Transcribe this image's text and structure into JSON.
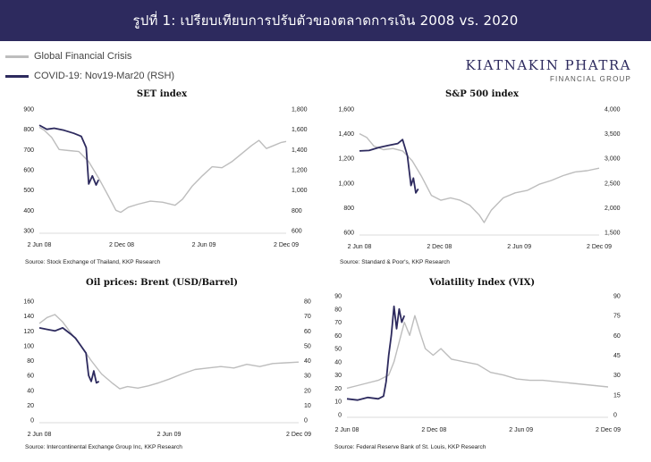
{
  "header": {
    "title": "รูปที่ 1: เปรียบเทียบการปรับตัวของตลาดการเงิน 2008 vs. 2020"
  },
  "legend": {
    "items": [
      {
        "label": "Global Financial Crisis",
        "color": "#bdbdbd"
      },
      {
        "label": "COVID-19: Nov19-Mar20 (RSH)",
        "color": "#2d2a5e"
      }
    ]
  },
  "brand": {
    "name": "KIATNAKIN PHATRA",
    "sub": "FINANCIAL GROUP"
  },
  "chart_data": [
    {
      "type": "line",
      "title": "SET index",
      "source": "Source: Stock Exchange of Thailand, KKP Research",
      "x_ticks": [
        "2 Jun 08",
        "2 Dec 08",
        "2 Jun 09",
        "2 Dec 09"
      ],
      "y_left": {
        "ticks": [
          "300",
          "400",
          "500",
          "600",
          "700",
          "800",
          "900"
        ],
        "range": [
          300,
          900
        ]
      },
      "y_right": {
        "ticks": [
          "600",
          "800",
          "1,000",
          "1,200",
          "1,400",
          "1,600",
          "1,800"
        ],
        "range": [
          600,
          1800
        ]
      },
      "series": [
        {
          "axis": "left",
          "color": "#bdbdbd",
          "values": [
            [
              0,
              810
            ],
            [
              0.02,
              795
            ],
            [
              0.05,
              760
            ],
            [
              0.08,
              700
            ],
            [
              0.12,
              695
            ],
            [
              0.16,
              690
            ],
            [
              0.2,
              640
            ],
            [
              0.24,
              560
            ],
            [
              0.28,
              470
            ],
            [
              0.31,
              400
            ],
            [
              0.33,
              390
            ],
            [
              0.36,
              415
            ],
            [
              0.4,
              430
            ],
            [
              0.45,
              445
            ],
            [
              0.5,
              440
            ],
            [
              0.55,
              425
            ],
            [
              0.58,
              455
            ],
            [
              0.62,
              520
            ],
            [
              0.66,
              570
            ],
            [
              0.7,
              615
            ],
            [
              0.74,
              610
            ],
            [
              0.78,
              640
            ],
            [
              0.82,
              680
            ],
            [
              0.86,
              720
            ],
            [
              0.89,
              745
            ],
            [
              0.92,
              705
            ],
            [
              0.95,
              720
            ],
            [
              0.98,
              735
            ],
            [
              1,
              740
            ]
          ]
        },
        {
          "axis": "right",
          "color": "#2d2a5e",
          "values": [
            [
              0,
              1640
            ],
            [
              0.03,
              1600
            ],
            [
              0.06,
              1610
            ],
            [
              0.1,
              1590
            ],
            [
              0.14,
              1560
            ],
            [
              0.17,
              1530
            ],
            [
              0.19,
              1420
            ],
            [
              0.2,
              1060
            ],
            [
              0.215,
              1140
            ],
            [
              0.23,
              1050
            ],
            [
              0.24,
              1100
            ]
          ]
        }
      ]
    },
    {
      "type": "line",
      "title": "S&P 500 index",
      "source": "Source: Standard & Poor's, KKP Research",
      "x_ticks": [
        "2 Jun 08",
        "2 Dec 08",
        "2 Jun 09",
        "2 Dec 09"
      ],
      "y_left": {
        "ticks": [
          "600",
          "800",
          "1,000",
          "1,200",
          "1,400",
          "1,600"
        ],
        "range": [
          600,
          1600
        ]
      },
      "y_right": {
        "ticks": [
          "1,500",
          "2,000",
          "2,500",
          "3,000",
          "3,500",
          "4,000"
        ],
        "range": [
          1500,
          4000
        ]
      },
      "series": [
        {
          "axis": "left",
          "color": "#bdbdbd",
          "values": [
            [
              0,
              1400
            ],
            [
              0.03,
              1370
            ],
            [
              0.06,
              1300
            ],
            [
              0.1,
              1270
            ],
            [
              0.14,
              1280
            ],
            [
              0.18,
              1260
            ],
            [
              0.22,
              1180
            ],
            [
              0.26,
              1050
            ],
            [
              0.3,
              900
            ],
            [
              0.34,
              860
            ],
            [
              0.38,
              880
            ],
            [
              0.42,
              860
            ],
            [
              0.46,
              820
            ],
            [
              0.5,
              740
            ],
            [
              0.52,
              680
            ],
            [
              0.55,
              780
            ],
            [
              0.6,
              880
            ],
            [
              0.65,
              920
            ],
            [
              0.7,
              940
            ],
            [
              0.75,
              990
            ],
            [
              0.8,
              1020
            ],
            [
              0.85,
              1060
            ],
            [
              0.9,
              1090
            ],
            [
              0.95,
              1100
            ],
            [
              1,
              1120
            ]
          ]
        },
        {
          "axis": "right",
          "color": "#2d2a5e",
          "values": [
            [
              0,
              3150
            ],
            [
              0.04,
              3160
            ],
            [
              0.08,
              3220
            ],
            [
              0.12,
              3260
            ],
            [
              0.16,
              3300
            ],
            [
              0.18,
              3380
            ],
            [
              0.2,
              3050
            ],
            [
              0.215,
              2450
            ],
            [
              0.225,
              2600
            ],
            [
              0.235,
              2300
            ],
            [
              0.245,
              2380
            ]
          ]
        }
      ]
    },
    {
      "type": "line",
      "title": "Oil prices: Brent (USD/Barrel)",
      "source": "Source: Intercontinental Exchange Group Inc, KKP Research",
      "x_ticks": [
        "2 Jun 08",
        "2 Jun 09",
        "2 Dec 09"
      ],
      "y_left": {
        "ticks": [
          "0",
          "20",
          "40",
          "60",
          "80",
          "100",
          "120",
          "140",
          "160"
        ],
        "range": [
          0,
          160
        ]
      },
      "y_right": {
        "ticks": [
          "0",
          "10",
          "20",
          "30",
          "40",
          "50",
          "60",
          "70",
          "80"
        ],
        "range": [
          0,
          80
        ]
      },
      "series": [
        {
          "axis": "left",
          "color": "#bdbdbd",
          "values": [
            [
              0,
              130
            ],
            [
              0.03,
              138
            ],
            [
              0.06,
              142
            ],
            [
              0.09,
              132
            ],
            [
              0.12,
              118
            ],
            [
              0.16,
              100
            ],
            [
              0.2,
              80
            ],
            [
              0.24,
              62
            ],
            [
              0.28,
              50
            ],
            [
              0.31,
              42
            ],
            [
              0.34,
              45
            ],
            [
              0.38,
              43
            ],
            [
              0.42,
              46
            ],
            [
              0.46,
              50
            ],
            [
              0.5,
              55
            ],
            [
              0.55,
              62
            ],
            [
              0.6,
              68
            ],
            [
              0.65,
              70
            ],
            [
              0.7,
              72
            ],
            [
              0.75,
              70
            ],
            [
              0.8,
              75
            ],
            [
              0.85,
              72
            ],
            [
              0.9,
              76
            ],
            [
              0.95,
              77
            ],
            [
              1,
              78
            ]
          ]
        },
        {
          "axis": "right",
          "color": "#2d2a5e",
          "values": [
            [
              0,
              62
            ],
            [
              0.03,
              61
            ],
            [
              0.06,
              60
            ],
            [
              0.09,
              62
            ],
            [
              0.12,
              58
            ],
            [
              0.14,
              55
            ],
            [
              0.16,
              50
            ],
            [
              0.18,
              45
            ],
            [
              0.19,
              30
            ],
            [
              0.2,
              26
            ],
            [
              0.21,
              33
            ],
            [
              0.22,
              25
            ],
            [
              0.23,
              26
            ]
          ]
        }
      ]
    },
    {
      "type": "line",
      "title": "Volatility Index (VIX)",
      "source": "Source: Federal Reserve Bank of St. Louis, KKP Research",
      "x_ticks": [
        "2 Jun 08",
        "2 Dec 08",
        "2 Jun 09",
        "2 Dec 09"
      ],
      "y_left": {
        "ticks": [
          "0",
          "10",
          "20",
          "30",
          "40",
          "50",
          "60",
          "70",
          "80",
          "90"
        ],
        "range": [
          0,
          90
        ]
      },
      "y_right": {
        "ticks": [
          "0",
          "15",
          "30",
          "45",
          "60",
          "75",
          "90"
        ],
        "range": [
          0,
          90
        ]
      },
      "series": [
        {
          "axis": "left",
          "color": "#bdbdbd",
          "values": [
            [
              0,
              20
            ],
            [
              0.04,
              22
            ],
            [
              0.08,
              24
            ],
            [
              0.12,
              26
            ],
            [
              0.16,
              30
            ],
            [
              0.18,
              40
            ],
            [
              0.2,
              55
            ],
            [
              0.22,
              70
            ],
            [
              0.24,
              60
            ],
            [
              0.26,
              75
            ],
            [
              0.28,
              62
            ],
            [
              0.3,
              50
            ],
            [
              0.33,
              45
            ],
            [
              0.36,
              50
            ],
            [
              0.4,
              42
            ],
            [
              0.45,
              40
            ],
            [
              0.5,
              38
            ],
            [
              0.55,
              32
            ],
            [
              0.6,
              30
            ],
            [
              0.65,
              27
            ],
            [
              0.7,
              26
            ],
            [
              0.75,
              26
            ],
            [
              0.8,
              25
            ],
            [
              0.85,
              24
            ],
            [
              0.9,
              23
            ],
            [
              0.95,
              22
            ],
            [
              1,
              21
            ]
          ]
        },
        {
          "axis": "right",
          "color": "#2d2a5e",
          "values": [
            [
              0,
              12
            ],
            [
              0.04,
              11
            ],
            [
              0.08,
              13
            ],
            [
              0.12,
              12
            ],
            [
              0.14,
              14
            ],
            [
              0.15,
              25
            ],
            [
              0.16,
              45
            ],
            [
              0.17,
              60
            ],
            [
              0.18,
              82
            ],
            [
              0.19,
              65
            ],
            [
              0.2,
              80
            ],
            [
              0.21,
              70
            ],
            [
              0.22,
              75
            ]
          ]
        }
      ]
    }
  ]
}
